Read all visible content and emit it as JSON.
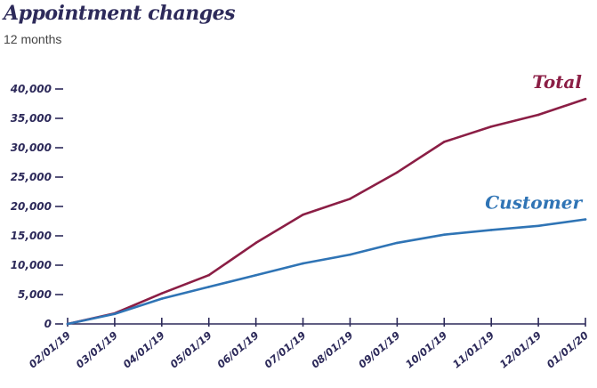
{
  "chart_data": {
    "type": "line",
    "title": "Appointment changes",
    "subtitle": "12 months",
    "xlabel": "",
    "ylabel": "",
    "ylim": [
      0,
      40000
    ],
    "yticks": [
      0,
      5000,
      10000,
      15000,
      20000,
      25000,
      30000,
      35000,
      40000
    ],
    "ytick_labels": [
      "0",
      "5,000",
      "10,000",
      "15,000",
      "20,000",
      "25,000",
      "30,000",
      "35,000",
      "40,000"
    ],
    "x": [
      "02/01/19",
      "03/01/19",
      "04/01/19",
      "05/01/19",
      "06/01/19",
      "07/01/19",
      "08/01/19",
      "09/01/19",
      "10/01/19",
      "11/01/19",
      "12/01/19",
      "01/01/20"
    ],
    "grid": false,
    "legend": "inline-labels",
    "series": [
      {
        "name": "Total",
        "color": "#8b1e45",
        "values": [
          0,
          1800,
          5200,
          8300,
          13800,
          18600,
          21300,
          25800,
          31000,
          33600,
          35600,
          38300
        ]
      },
      {
        "name": "Customer",
        "color": "#2f74b5",
        "values": [
          0,
          1700,
          4300,
          6300,
          8300,
          10300,
          11800,
          13800,
          15200,
          16000,
          16700,
          17800
        ]
      }
    ]
  }
}
